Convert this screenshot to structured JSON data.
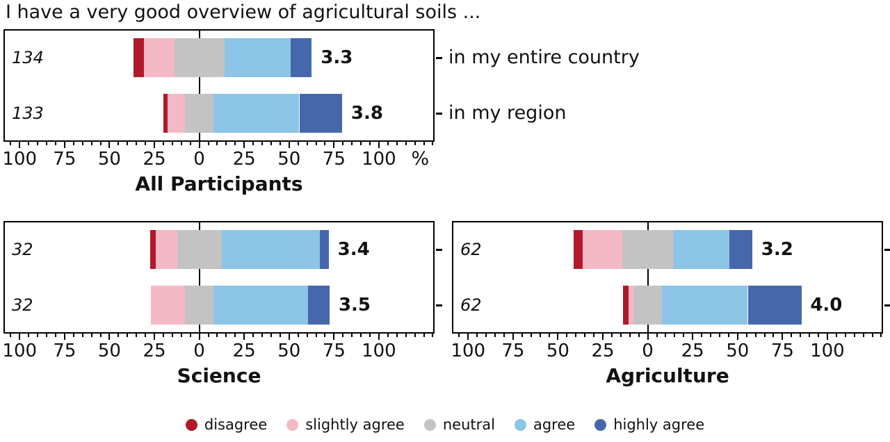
{
  "title": "I have a very good overview of agricultural soils ...",
  "percent_symbol": "%",
  "legend": [
    {
      "label": "disagree",
      "color": "#b2182b"
    },
    {
      "label": "slightly agree",
      "color": "#f5b8c5"
    },
    {
      "label": "neutral",
      "color": "#c3c3c3"
    },
    {
      "label": "agree",
      "color": "#8cc5e7"
    },
    {
      "label": "highly agree",
      "color": "#4767ad"
    }
  ],
  "axis": {
    "xmin": -109,
    "xmax": 131,
    "major_ticks": [
      -100,
      -75,
      -50,
      -25,
      0,
      25,
      50,
      75,
      100
    ],
    "minor_step": 5,
    "tick_labels_absolute": true,
    "unit": "%"
  },
  "chart_data": [
    {
      "type": "bar",
      "variant": "diverging-stacked-likert",
      "title": "All Participants",
      "categories": [
        "disagree",
        "slightly agree",
        "neutral",
        "agree",
        "highly agree"
      ],
      "unit": "% of respondents",
      "rows": [
        {
          "n": 134,
          "label": "in my entire country",
          "mean": "3.3",
          "values": [
            6,
            17,
            28,
            37,
            12
          ]
        },
        {
          "n": 133,
          "label": "in my region",
          "mean": "3.8",
          "values": [
            2,
            10,
            16,
            48,
            24
          ]
        }
      ]
    },
    {
      "type": "bar",
      "variant": "diverging-stacked-likert",
      "title": "Science",
      "categories": [
        "disagree",
        "slightly agree",
        "neutral",
        "agree",
        "highly agree"
      ],
      "unit": "% of respondents",
      "rows": [
        {
          "n": 32,
          "mean": "3.4",
          "values": [
            3,
            12,
            25,
            55,
            5
          ]
        },
        {
          "n": 32,
          "mean": "3.5",
          "values": [
            0,
            19,
            16,
            53,
            12
          ]
        }
      ]
    },
    {
      "type": "bar",
      "variant": "diverging-stacked-likert",
      "title": "Agriculture",
      "categories": [
        "disagree",
        "slightly agree",
        "neutral",
        "agree",
        "highly agree"
      ],
      "unit": "% of respondents",
      "rows": [
        {
          "n": 62,
          "mean": "3.2",
          "values": [
            5,
            22,
            29,
            31,
            13
          ]
        },
        {
          "n": 62,
          "mean": "4.0",
          "values": [
            3,
            3,
            16,
            48,
            30
          ]
        }
      ]
    }
  ]
}
